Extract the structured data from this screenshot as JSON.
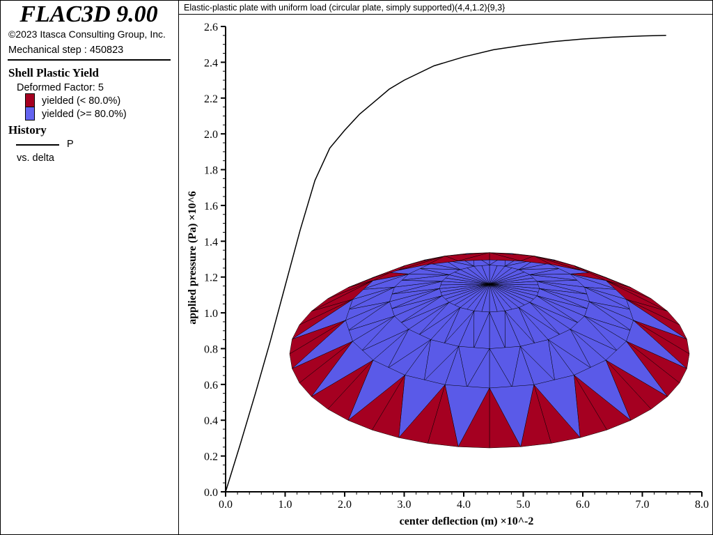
{
  "legend": {
    "app_title": "FLAC3D 9.00",
    "copyright": "©2023 Itasca Consulting Group, Inc.",
    "step": "Mechanical step : 450823",
    "plot_title": "Shell Plastic Yield",
    "deformed": "Deformed Factor: 5",
    "items": [
      {
        "label": "yielded (< 80.0%)",
        "color": "#a50021"
      },
      {
        "label": "yielded (>= 80.0%)",
        "color": "#5a5ae8"
      }
    ],
    "history_title": "History",
    "history_series": "P",
    "history_vs": "vs. delta"
  },
  "chart_data": {
    "type": "line",
    "title": "Elastic-plastic plate with uniform load (circular plate, simply supported)(4,4,1.2){9,3}",
    "xlabel": "center deflection (m) ×10^-2",
    "ylabel": "applied pressure (Pa) ×10^6",
    "xlim": [
      0,
      8
    ],
    "ylim": [
      0,
      2.6
    ],
    "xticks": [
      "0.0",
      "1.0",
      "2.0",
      "3.0",
      "4.0",
      "5.0",
      "6.0",
      "7.0",
      "8.0"
    ],
    "yticks": [
      "0.0",
      "0.2",
      "0.4",
      "0.6",
      "0.8",
      "1.0",
      "1.2",
      "1.4",
      "1.6",
      "1.8",
      "2.0",
      "2.2",
      "2.4",
      "2.6"
    ],
    "series": [
      {
        "name": "P",
        "x": [
          0,
          0.25,
          0.5,
          0.75,
          1.0,
          1.25,
          1.5,
          1.75,
          2.0,
          2.25,
          2.5,
          2.75,
          3.0,
          3.5,
          4.0,
          4.5,
          5.0,
          5.5,
          6.0,
          6.5,
          7.0,
          7.4
        ],
        "y": [
          0,
          0.27,
          0.55,
          0.84,
          1.15,
          1.46,
          1.74,
          1.92,
          2.02,
          2.11,
          2.18,
          2.25,
          2.3,
          2.38,
          2.43,
          2.47,
          2.495,
          2.515,
          2.53,
          2.54,
          2.547,
          2.55
        ]
      }
    ]
  }
}
